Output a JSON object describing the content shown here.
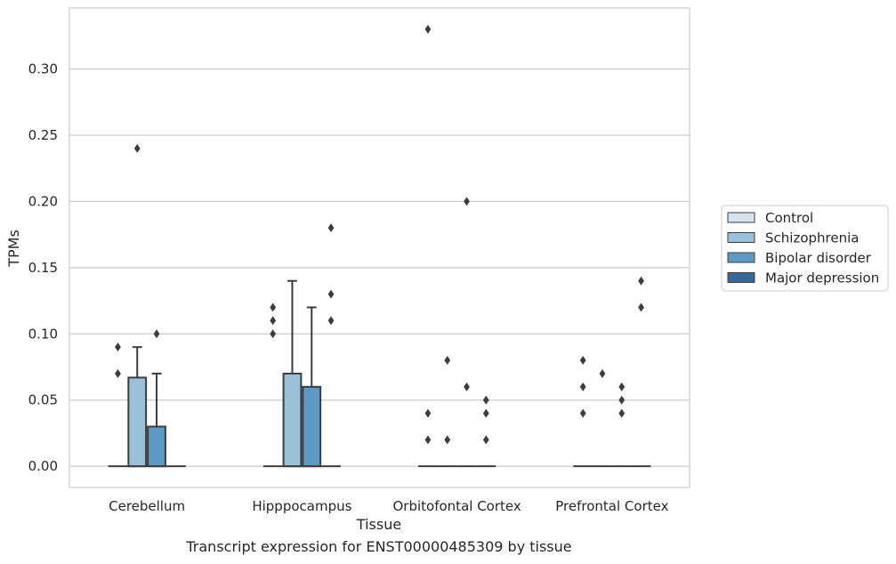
{
  "caption": "Transcript expression for ENST00000485309 by tissue",
  "chart_data": {
    "type": "box",
    "xlabel": "Tissue",
    "ylabel": "TPMs",
    "ylim": [
      -0.016,
      0.346
    ],
    "yticks": [
      0.0,
      0.05,
      0.1,
      0.15,
      0.2,
      0.25,
      0.3
    ],
    "ytick_labels": [
      "0.00",
      "0.05",
      "0.10",
      "0.15",
      "0.20",
      "0.25",
      "0.30"
    ],
    "grid": true,
    "legend_position": "right",
    "categories": [
      "Cerebellum",
      "Hipppocampus",
      "Orbitofontal Cortex",
      "Prefrontal Cortex"
    ],
    "series": [
      {
        "name": "Control",
        "color": "#d6e3ef",
        "boxes": [
          {
            "q1": 0,
            "median": 0,
            "q3": 0,
            "whisker_low": 0,
            "whisker_high": 0,
            "outliers": [
              0.09,
              0.07
            ]
          },
          {
            "q1": 0,
            "median": 0,
            "q3": 0,
            "whisker_low": 0,
            "whisker_high": 0,
            "outliers": [
              0.12,
              0.11,
              0.1
            ]
          },
          {
            "q1": 0,
            "median": 0,
            "q3": 0,
            "whisker_low": 0,
            "whisker_high": 0,
            "outliers": [
              0.33,
              0.04,
              0.02
            ]
          },
          {
            "q1": 0,
            "median": 0,
            "q3": 0,
            "whisker_low": 0,
            "whisker_high": 0,
            "outliers": [
              0.08,
              0.06,
              0.04
            ]
          }
        ]
      },
      {
        "name": "Schizophrenia",
        "color": "#9ac0da",
        "boxes": [
          {
            "q1": 0,
            "median": 0,
            "q3": 0.067,
            "whisker_low": 0,
            "whisker_high": 0.09,
            "outliers": [
              0.24
            ]
          },
          {
            "q1": 0,
            "median": 0,
            "q3": 0.07,
            "whisker_low": 0,
            "whisker_high": 0.14,
            "outliers": []
          },
          {
            "q1": 0,
            "median": 0,
            "q3": 0,
            "whisker_low": 0,
            "whisker_high": 0,
            "outliers": [
              0.08,
              0.02
            ]
          },
          {
            "q1": 0,
            "median": 0,
            "q3": 0,
            "whisker_low": 0,
            "whisker_high": 0,
            "outliers": [
              0.07
            ]
          }
        ]
      },
      {
        "name": "Bipolar disorder",
        "color": "#5b9ac5",
        "boxes": [
          {
            "q1": 0,
            "median": 0,
            "q3": 0.03,
            "whisker_low": 0,
            "whisker_high": 0.07,
            "outliers": [
              0.1
            ]
          },
          {
            "q1": 0,
            "median": 0,
            "q3": 0.06,
            "whisker_low": 0,
            "whisker_high": 0.12,
            "outliers": []
          },
          {
            "q1": 0,
            "median": 0,
            "q3": 0,
            "whisker_low": 0,
            "whisker_high": 0,
            "outliers": [
              0.2,
              0.06
            ]
          },
          {
            "q1": 0,
            "median": 0,
            "q3": 0,
            "whisker_low": 0,
            "whisker_high": 0,
            "outliers": [
              0.06,
              0.05,
              0.04
            ]
          }
        ]
      },
      {
        "name": "Major depression",
        "color": "#2b6ba8",
        "boxes": [
          {
            "q1": 0,
            "median": 0,
            "q3": 0,
            "whisker_low": 0,
            "whisker_high": 0,
            "outliers": []
          },
          {
            "q1": 0,
            "median": 0,
            "q3": 0,
            "whisker_low": 0,
            "whisker_high": 0,
            "outliers": [
              0.18,
              0.13,
              0.11
            ]
          },
          {
            "q1": 0,
            "median": 0,
            "q3": 0,
            "whisker_low": 0,
            "whisker_high": 0,
            "outliers": [
              0.05,
              0.04,
              0.02
            ]
          },
          {
            "q1": 0,
            "median": 0,
            "q3": 0,
            "whisker_low": 0,
            "whisker_high": 0,
            "outliers": [
              0.14,
              0.12
            ]
          }
        ]
      }
    ]
  }
}
